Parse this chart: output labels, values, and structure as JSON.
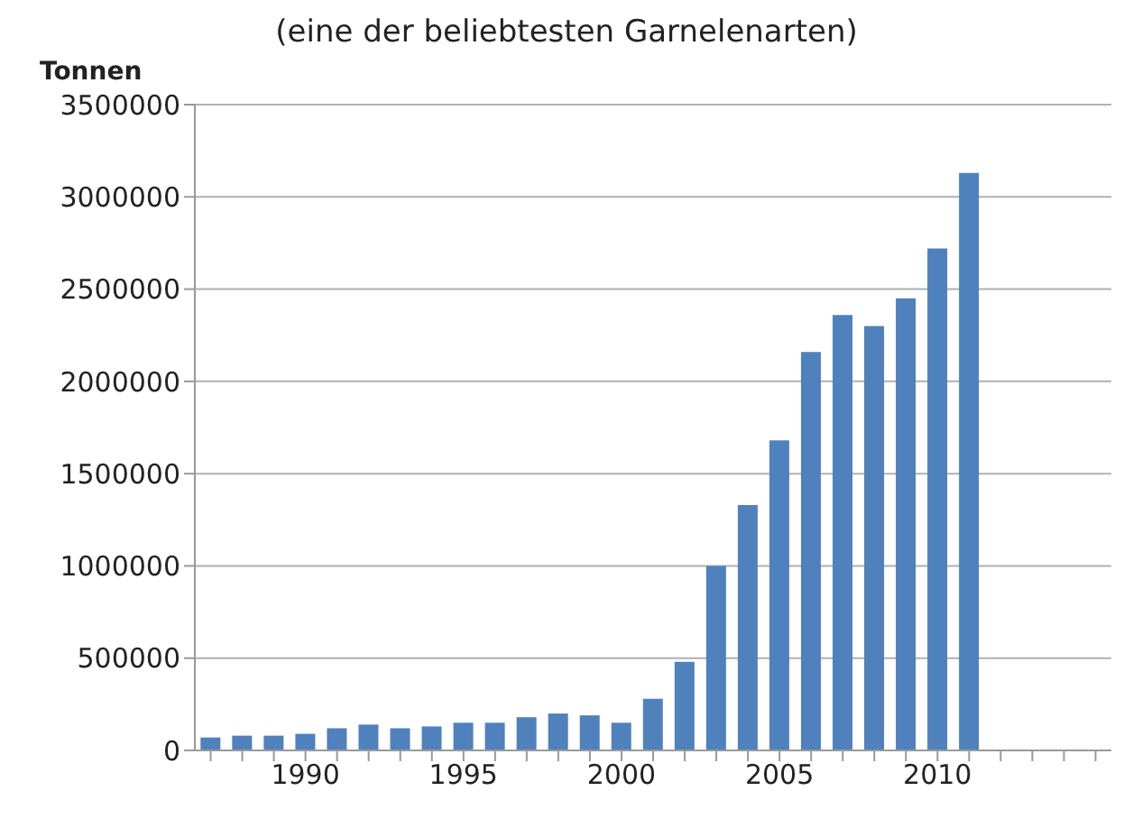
{
  "chart_data": {
    "type": "bar",
    "subtitle": "(eine der beliebtesten Garnelenarten)",
    "ylabel": "Tonnen",
    "categories": [
      null,
      null,
      null,
      "1990",
      null,
      null,
      null,
      null,
      "1995",
      null,
      null,
      null,
      null,
      "2000",
      null,
      null,
      null,
      null,
      "2005",
      null,
      null,
      null,
      null,
      "2010",
      null,
      null,
      null,
      null,
      null
    ],
    "values": [
      70000,
      80000,
      80000,
      90000,
      120000,
      140000,
      120000,
      130000,
      150000,
      150000,
      180000,
      200000,
      190000,
      150000,
      280000,
      480000,
      1000000,
      1330000,
      1680000,
      2160000,
      2360000,
      2300000,
      2450000,
      2720000,
      3130000,
      null,
      null,
      null,
      null
    ],
    "color": "#4f81bd",
    "ylim": [
      0,
      3500000
    ],
    "yticks": [
      0,
      500000,
      1000000,
      1500000,
      2000000,
      2500000,
      3000000,
      3500000
    ],
    "grid": "y"
  }
}
